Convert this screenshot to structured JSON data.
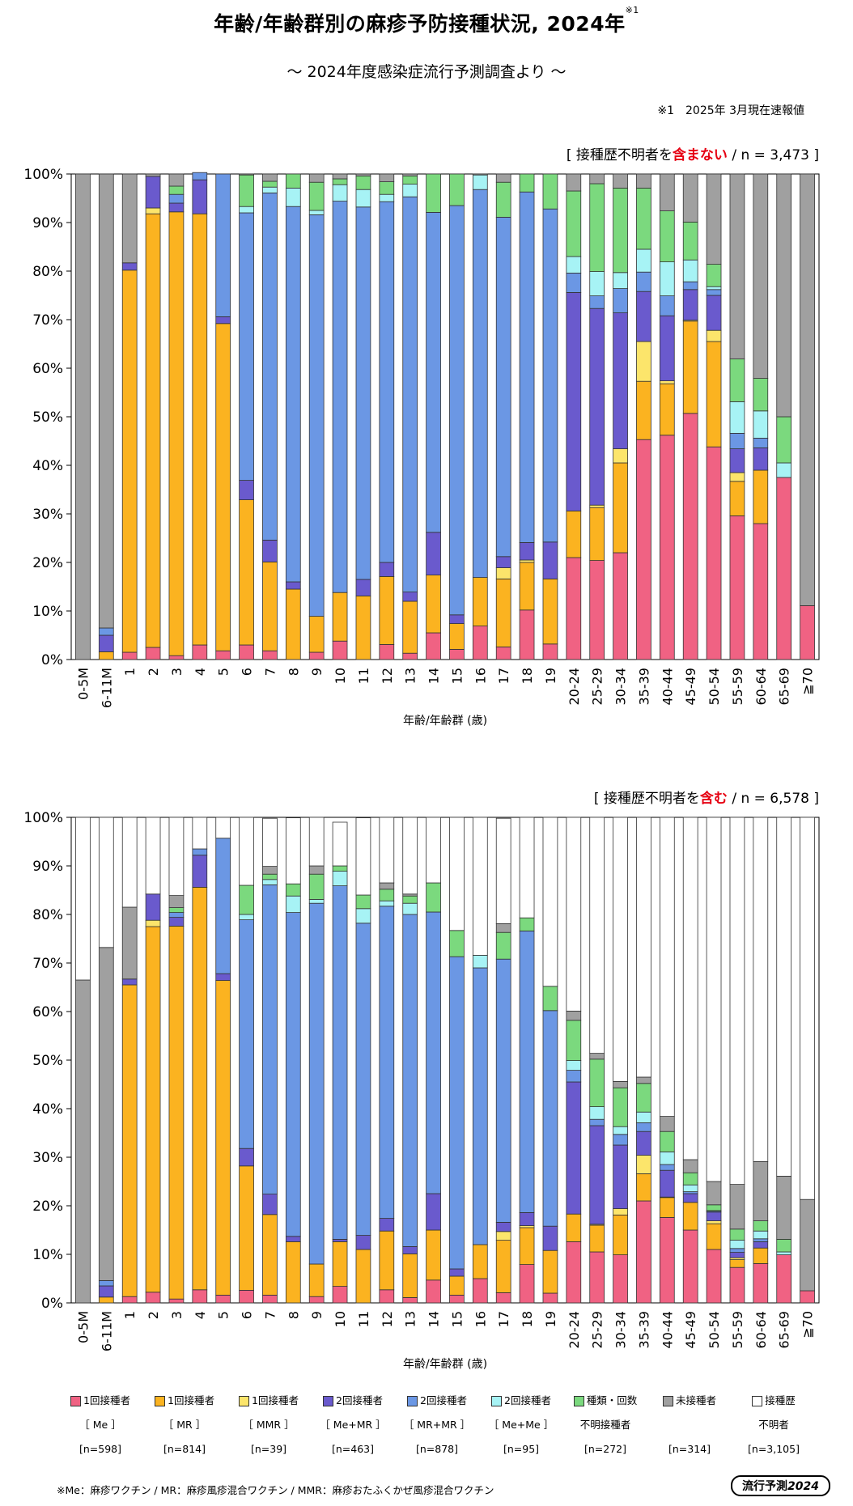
{
  "header": {
    "title": "年齢/年齢群別の麻疹予防接種状況, 2024年",
    "title_note_mark": "※1",
    "subtitle": "～ 2024年度感染症流行予測調査より ～",
    "footnote": "※1　2025年 3月現在速報値"
  },
  "colors": {
    "me1": "#f06283",
    "mr1": "#fbb320",
    "mmr1": "#fce56b",
    "me_mr2": "#6a5acd",
    "mr_mr2": "#6b97e4",
    "me_me2": "#a7f3f5",
    "unknown_type": "#7bd97e",
    "unvaccinated": "#a0a0a0",
    "history_unknown": "#ffffff"
  },
  "chart_data": [
    {
      "type": "bar",
      "stacked": true,
      "title": "[ 接種歴不明者を含まない / n = 3,473 ]",
      "title_parts": {
        "prefix": "[ 接種歴不明者を",
        "highlight": "含まない",
        "suffix": " / n = 3,473 ]"
      },
      "xlabel": "年齢/年齢群 (歳)",
      "ylim": [
        0,
        100
      ],
      "yticks": [
        "0%",
        "10%",
        "20%",
        "30%",
        "40%",
        "50%",
        "60%",
        "70%",
        "80%",
        "90%",
        "100%"
      ],
      "categories": [
        "0-5M",
        "6-11M",
        "1",
        "2",
        "3",
        "4",
        "5",
        "6",
        "7",
        "8",
        "9",
        "10",
        "11",
        "12",
        "13",
        "14",
        "15",
        "16",
        "17",
        "18",
        "19",
        "20-24",
        "25-29",
        "30-34",
        "35-39",
        "40-44",
        "45-49",
        "50-54",
        "55-59",
        "60-64",
        "65-69",
        "≧70"
      ],
      "series": [
        {
          "key": "me1",
          "name": "1回接種者 [Me]",
          "values": [
            0,
            0,
            1.5,
            2.5,
            0.8,
            3,
            1.8,
            3,
            1.8,
            0,
            1.5,
            3.8,
            0,
            3.1,
            1.3,
            5.5,
            2.1,
            6.9,
            2.6,
            10.2,
            3.2,
            21,
            20.4,
            22,
            45.3,
            46.2,
            50.7,
            43.8,
            29.6,
            28,
            37.5,
            11.1
          ]
        },
        {
          "key": "mr1",
          "name": "1回接種者 [MR]",
          "values": [
            0,
            1.6,
            78.7,
            89.3,
            91.4,
            88.8,
            67.4,
            29.9,
            18.3,
            14.5,
            7.4,
            10,
            13.1,
            14,
            10.7,
            11.9,
            5.3,
            10,
            14,
            9.8,
            13.4,
            9.6,
            10.9,
            18.5,
            12,
            10.6,
            19,
            21.7,
            7.1,
            11,
            0,
            0
          ]
        },
        {
          "key": "mmr1",
          "name": "1回接種者 [MMR]",
          "values": [
            0,
            0,
            0,
            1.2,
            0,
            0,
            0,
            0,
            0,
            0,
            0,
            0,
            0,
            0,
            0,
            0,
            0,
            0,
            2.3,
            0.5,
            0,
            0,
            0.5,
            2.9,
            8.2,
            0.6,
            0.2,
            2.3,
            1.8,
            0,
            0,
            0
          ]
        },
        {
          "key": "me_mr2",
          "name": "2回接種者 [Me+MR]",
          "values": [
            0,
            3.4,
            1.5,
            6.5,
            1.8,
            7,
            1.4,
            4,
            4.5,
            1.5,
            0,
            0,
            3.4,
            2.9,
            1.9,
            8.8,
            1.8,
            0,
            2.3,
            3.6,
            7.6,
            45,
            40.5,
            28,
            10.3,
            13.4,
            6.3,
            7.2,
            4.9,
            4.6,
            0,
            0
          ]
        },
        {
          "key": "mr_mr2",
          "name": "2回接種者 [MR+MR]",
          "values": [
            0,
            1.5,
            0,
            0,
            1.8,
            1.5,
            29.4,
            55.1,
            71.5,
            77.3,
            82.7,
            80.6,
            76.7,
            74.3,
            81.4,
            65.9,
            84.3,
            79.9,
            69.9,
            72.2,
            68.6,
            4,
            2.6,
            5,
            4,
            4.1,
            1.6,
            1.2,
            3.2,
            2,
            0,
            0
          ]
        },
        {
          "key": "me_me2",
          "name": "2回接種者 [Me+Me]",
          "values": [
            0,
            0,
            0,
            0,
            0,
            0,
            0,
            1.3,
            1.2,
            3.8,
            0.9,
            3.4,
            3.6,
            1.5,
            2.6,
            0,
            0,
            3,
            0,
            0,
            0,
            3.4,
            5,
            3.3,
            4.7,
            7,
            4.5,
            0.6,
            6.5,
            5.6,
            3,
            0
          ]
        },
        {
          "key": "unknown_type",
          "name": "種類・回数不明接種者",
          "values": [
            0,
            0,
            0,
            0,
            1.7,
            0,
            0,
            6.5,
            1.2,
            2.9,
            5.8,
            1.2,
            2.8,
            2.6,
            1.7,
            7.9,
            6.5,
            0,
            7.2,
            3.7,
            7.2,
            13.5,
            18.1,
            17.4,
            12.6,
            10.5,
            7.8,
            4.6,
            8.8,
            6.7,
            9.5,
            0
          ]
        },
        {
          "key": "unvaccinated",
          "name": "未接種者",
          "values": [
            100,
            93.5,
            18.3,
            0.5,
            2.5,
            0,
            0,
            0.2,
            1.5,
            0,
            1.7,
            1,
            0.4,
            1.6,
            0.4,
            0,
            0,
            0.2,
            1.7,
            0,
            0,
            3.5,
            2,
            2.9,
            2.9,
            7.6,
            9.9,
            18.6,
            38.1,
            42.1,
            50,
            88.9
          ]
        }
      ]
    },
    {
      "type": "bar",
      "stacked": true,
      "title": "[ 接種歴不明者を含む / n = 6,578 ]",
      "title_parts": {
        "prefix": "[ 接種歴不明者を",
        "highlight": "含む",
        "suffix": " / n = 6,578 ]"
      },
      "xlabel": "年齢/年齢群 (歳)",
      "ylim": [
        0,
        100
      ],
      "yticks": [
        "0%",
        "10%",
        "20%",
        "30%",
        "40%",
        "50%",
        "60%",
        "70%",
        "80%",
        "90%",
        "100%"
      ],
      "categories": [
        "0-5M",
        "6-11M",
        "1",
        "2",
        "3",
        "4",
        "5",
        "6",
        "7",
        "8",
        "9",
        "10",
        "11",
        "12",
        "13",
        "14",
        "15",
        "16",
        "17",
        "18",
        "19",
        "20-24",
        "25-29",
        "30-34",
        "35-39",
        "40-44",
        "45-49",
        "50-54",
        "55-59",
        "60-64",
        "65-69",
        "≧70"
      ],
      "series": [
        {
          "key": "me1",
          "name": "1回接種者 [Me]",
          "values": [
            0,
            0,
            1.3,
            2.2,
            0.8,
            2.7,
            1.6,
            2.6,
            1.6,
            0,
            1.3,
            3.4,
            0,
            2.7,
            1.1,
            4.7,
            1.6,
            5,
            2.1,
            7.9,
            2,
            12.6,
            10.5,
            9.9,
            21,
            17.6,
            15,
            11,
            7.3,
            8.1,
            9.9,
            2.5
          ]
        },
        {
          "key": "mr1",
          "name": "1回接種者 [MR]",
          "values": [
            0,
            1.2,
            64.2,
            75.3,
            76.8,
            82.9,
            64.8,
            25.6,
            16.6,
            12.6,
            6.7,
            9.2,
            11,
            12.1,
            9,
            10.3,
            3.9,
            7,
            10.8,
            7.6,
            8.8,
            5.7,
            5.5,
            8.2,
            5.6,
            4.1,
            5.7,
            5.3,
            1.6,
            3.2,
            0,
            0
          ]
        },
        {
          "key": "mmr1",
          "name": "1回接種者 [MMR]",
          "values": [
            0,
            0,
            0,
            1.3,
            0,
            0,
            0,
            0,
            0,
            0,
            0,
            0,
            0,
            0,
            0,
            0,
            0,
            0,
            1.8,
            0.4,
            0,
            0,
            0.2,
            1.3,
            3.8,
            0.1,
            0,
            0.6,
            0.4,
            0,
            0,
            0
          ]
        },
        {
          "key": "me_mr2",
          "name": "2回接種者 [Me+MR]",
          "values": [
            0,
            2.3,
            1.2,
            5.4,
            1.8,
            6.6,
            1.4,
            3.6,
            4.2,
            1.1,
            0,
            0.5,
            2.9,
            2.6,
            1.5,
            7.5,
            1.5,
            0,
            1.9,
            2.7,
            5,
            27.2,
            20.3,
            13.1,
            4.9,
            5.5,
            1.8,
            1.8,
            1.1,
            1.3,
            0,
            0
          ]
        },
        {
          "key": "mr_mr2",
          "name": "2回接種者 [MR+MR]",
          "values": [
            0,
            1.1,
            0,
            0,
            1,
            1.3,
            27.9,
            47.1,
            63.7,
            66.7,
            74.3,
            72.8,
            64.3,
            64.3,
            68.4,
            58,
            64.3,
            57,
            54.2,
            58,
            44.4,
            2.4,
            1.3,
            2.2,
            1.8,
            1.2,
            0.4,
            0.2,
            0.8,
            0.6,
            0,
            0
          ]
        },
        {
          "key": "me_me2",
          "name": "2回接種者 [Me+Me]",
          "values": [
            0,
            0,
            0,
            0,
            0,
            0,
            0,
            1.1,
            1.1,
            3.4,
            0.8,
            3,
            3,
            1.1,
            2.3,
            0,
            0,
            2.6,
            0,
            0,
            0,
            2,
            2.6,
            1.6,
            2.2,
            2.6,
            1.4,
            0.1,
            1.7,
            1.6,
            0.6,
            0
          ]
        },
        {
          "key": "unknown_type",
          "name": "種類・回数不明接種者",
          "values": [
            0,
            0,
            0,
            0,
            1,
            0,
            0,
            6,
            1.1,
            2.5,
            5.2,
            1.1,
            2.8,
            2.4,
            1.5,
            6,
            5.4,
            0,
            5.5,
            2.7,
            5,
            8.3,
            9.8,
            8,
            5.9,
            4.2,
            2.5,
            1.2,
            2.3,
            2.1,
            2.6,
            0
          ]
        },
        {
          "key": "unvaccinated",
          "name": "未接種者",
          "values": [
            66.5,
            68.6,
            14.8,
            0,
            2.5,
            0,
            0,
            0,
            1.6,
            0,
            1.7,
            0,
            0,
            1.3,
            0.4,
            0,
            0,
            0,
            1.8,
            0,
            0,
            1.9,
            1.2,
            1.3,
            1.3,
            3.1,
            2.7,
            4.8,
            9.2,
            12.2,
            13,
            18.8
          ]
        },
        {
          "key": "history_unknown",
          "name": "接種歴不明者",
          "values": [
            33.5,
            26.8,
            18.5,
            15.8,
            16.1,
            6.5,
            4.3,
            14,
            9.9,
            13.6,
            10,
            9,
            15.9,
            13.5,
            15.8,
            13.5,
            23.3,
            28.4,
            21.7,
            20.7,
            34.8,
            39.9,
            48.6,
            54.4,
            53.5,
            61.6,
            70.5,
            75,
            75.6,
            70.9,
            73.9,
            78.7
          ]
        }
      ]
    }
  ],
  "legend": [
    {
      "key": "me1",
      "line1": "1回接種者",
      "line2": "［ Me ］",
      "count": "[n=598]"
    },
    {
      "key": "mr1",
      "line1": "1回接種者",
      "line2": "［ MR ］",
      "count": "[n=814]"
    },
    {
      "key": "mmr1",
      "line1": "1回接種者",
      "line2": "［ MMR ］",
      "count": "[n=39]"
    },
    {
      "key": "me_mr2",
      "line1": "2回接種者",
      "line2": "［ Me+MR ］",
      "count": "[n=463]"
    },
    {
      "key": "mr_mr2",
      "line1": "2回接種者",
      "line2": "［ MR+MR ］",
      "count": "[n=878]"
    },
    {
      "key": "me_me2",
      "line1": "2回接種者",
      "line2": "［ Me+Me ］",
      "count": "[n=95]"
    },
    {
      "key": "unknown_type",
      "line1": "種類・回数",
      "line2": "不明接種者",
      "count": "[n=272]"
    },
    {
      "key": "unvaccinated",
      "line1": "未接種者",
      "line2": "",
      "count": "[n=314]"
    },
    {
      "key": "history_unknown",
      "line1": "接種歴",
      "line2": "不明者",
      "count": "[n=3,105]"
    }
  ],
  "footer": {
    "note": "※Me：麻疹ワクチン / MR：麻疹風疹混合ワクチン / MMR：麻疹おたふくかぜ風疹混合ワクチン",
    "logo_text": "流行予測",
    "logo_year": "2024"
  }
}
